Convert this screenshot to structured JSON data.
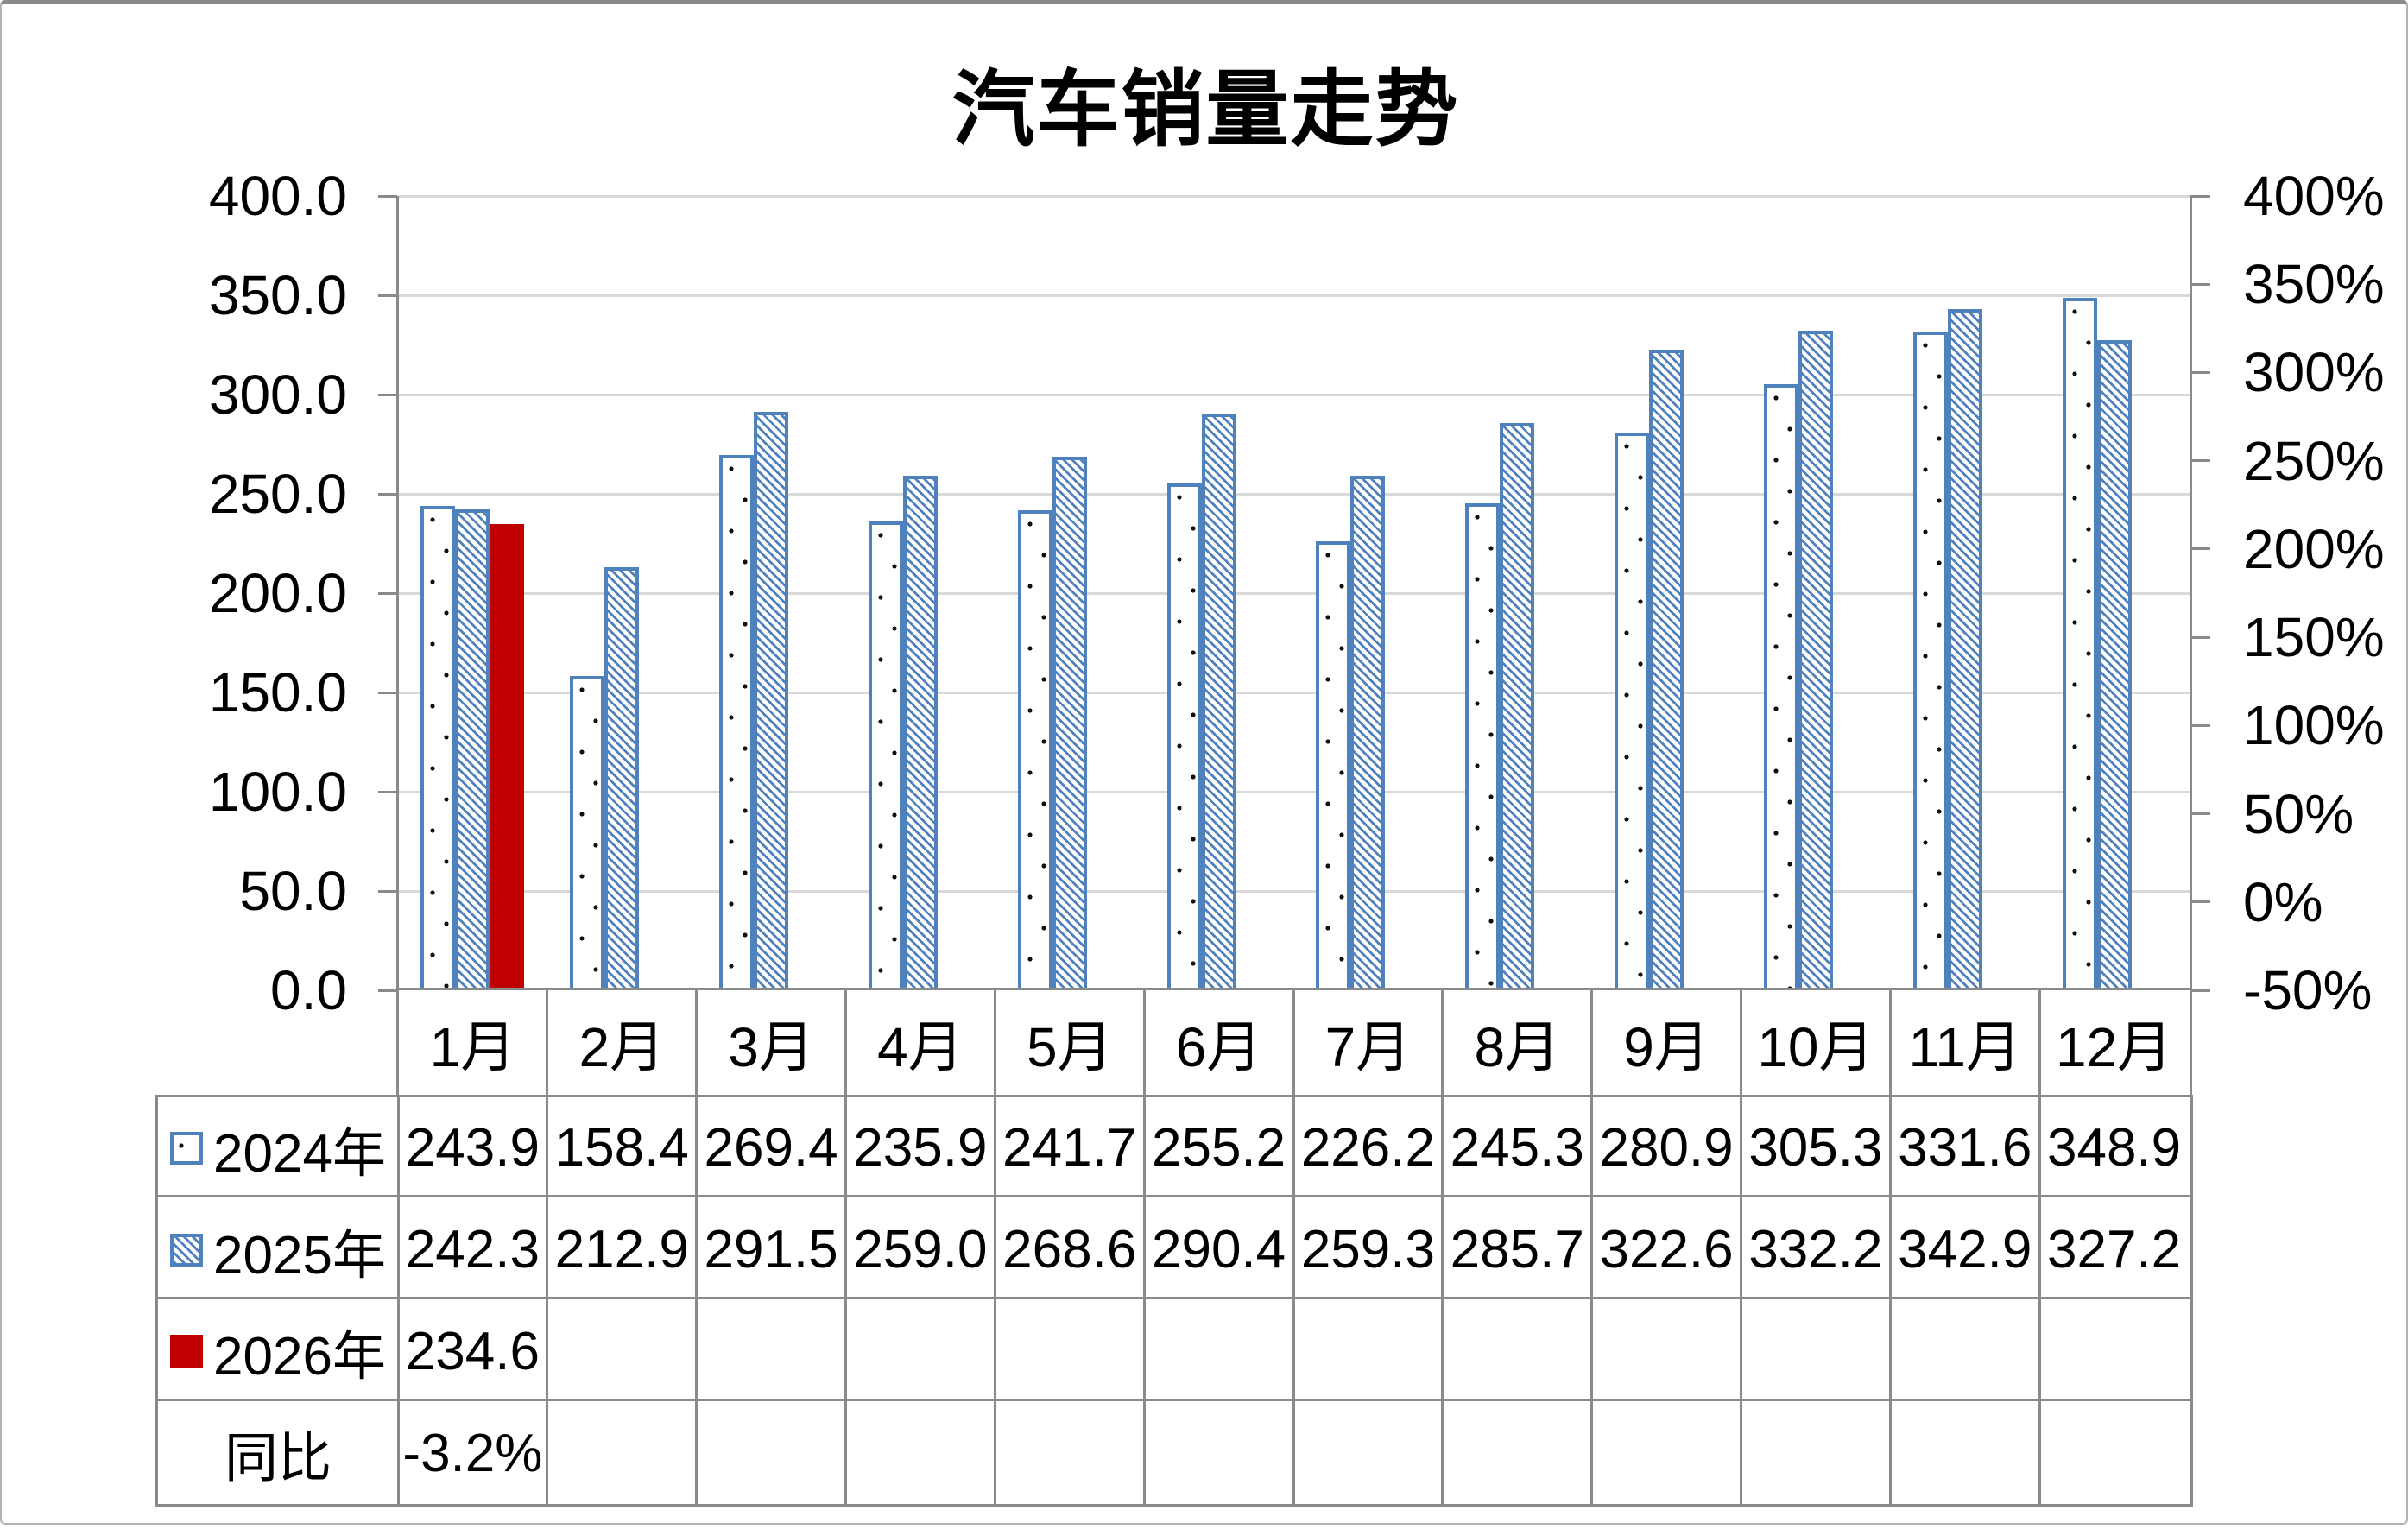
{
  "title": "汽车销量走势",
  "colors": {
    "series_blue": "#4F81BD",
    "series_red": "#C00000",
    "gridline": "#D9D9D9",
    "axis_gray": "#8A8A8A",
    "dot_black": "#111111"
  },
  "chart_data": {
    "type": "bar",
    "title": "汽车销量走势",
    "categories": [
      "1月",
      "2月",
      "3月",
      "4月",
      "5月",
      "6月",
      "7月",
      "8月",
      "9月",
      "10月",
      "11月",
      "12月"
    ],
    "series": [
      {
        "name": "2024年",
        "pattern": "dots",
        "marker": "dotted-square-key",
        "values": [
          243.9,
          158.4,
          269.4,
          235.9,
          241.7,
          255.2,
          226.2,
          245.3,
          280.9,
          305.3,
          331.6,
          348.9
        ]
      },
      {
        "name": "2025年",
        "pattern": "hatch",
        "marker": "hatched-square-key",
        "values": [
          242.3,
          212.9,
          291.5,
          259.0,
          268.6,
          290.4,
          259.3,
          285.7,
          322.6,
          332.2,
          342.9,
          327.2
        ]
      },
      {
        "name": "2026年",
        "pattern": "solid",
        "marker": "red-square-key",
        "values": [
          234.6,
          null,
          null,
          null,
          null,
          null,
          null,
          null,
          null,
          null,
          null,
          null
        ]
      }
    ],
    "extra_rows": [
      {
        "name": "同比",
        "values": [
          "-3.2%",
          "",
          "",
          "",
          "",
          "",
          "",
          "",
          "",
          "",
          "",
          ""
        ]
      }
    ],
    "left_axis": {
      "min": 0,
      "max": 400,
      "tick_labels": [
        "400.0",
        "350.0",
        "300.0",
        "250.0",
        "200.0",
        "150.0",
        "100.0",
        "50.0",
        "0.0"
      ]
    },
    "right_axis": {
      "min": -50,
      "max": 400,
      "tick_labels": [
        "400%",
        "350%",
        "300%",
        "250%",
        "200%",
        "150%",
        "100%",
        "50%",
        "0%",
        "-50%"
      ]
    },
    "grid": true,
    "legend_position": "data-table-left-column"
  }
}
